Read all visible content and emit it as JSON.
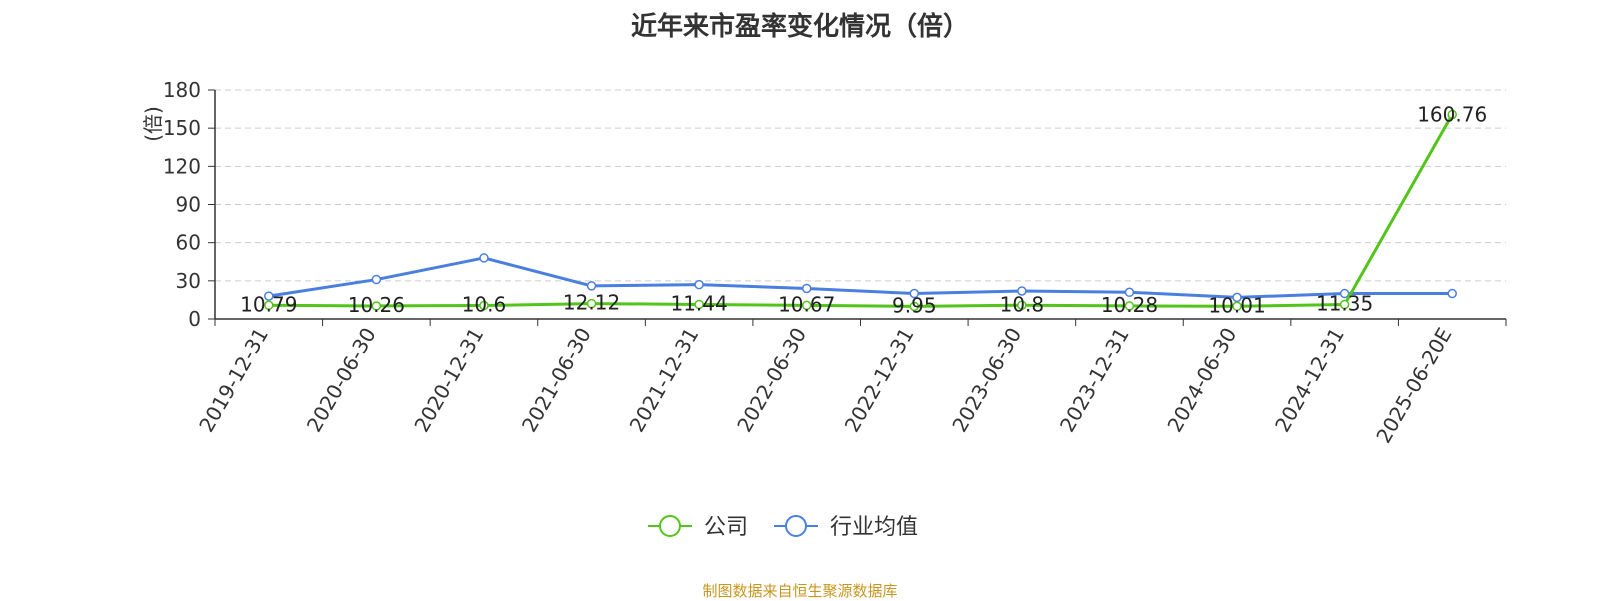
{
  "title": "近年来市盈率变化情况（倍）",
  "source": "制图数据来自恒生聚源数据库",
  "source_color": "#c8961e",
  "chart_data": {
    "type": "line",
    "title": "近年来市盈率变化情况（倍）",
    "ylabel": "(倍)",
    "ylabel_color": "#e00000",
    "ylim": [
      0,
      180
    ],
    "yticks": [
      0,
      30,
      60,
      90,
      120,
      150,
      180
    ],
    "grid": true,
    "legend_position": "bottom",
    "categories": [
      "2019-12-31",
      "2020-06-30",
      "2020-12-31",
      "2021-06-30",
      "2021-12-31",
      "2022-06-30",
      "2022-12-31",
      "2023-06-30",
      "2023-12-31",
      "2024-06-30",
      "2024-12-31",
      "2025-06-20E"
    ],
    "series": [
      {
        "name": "公司",
        "color": "#52c41a",
        "values": [
          10.79,
          10.26,
          10.6,
          12.12,
          11.44,
          10.67,
          9.95,
          10.8,
          10.28,
          10.01,
          11.35,
          160.76
        ],
        "labels": [
          "10.79",
          "10.26",
          "10.6",
          "12.12",
          "11.44",
          "10.67",
          "9.95",
          "10.8",
          "10.28",
          "10.01",
          "11.35",
          "160.76"
        ]
      },
      {
        "name": "行业均值",
        "color": "#4a7fe0",
        "values": [
          18,
          31,
          48,
          26,
          27,
          24,
          20,
          22,
          21,
          17,
          20,
          20
        ]
      }
    ]
  }
}
